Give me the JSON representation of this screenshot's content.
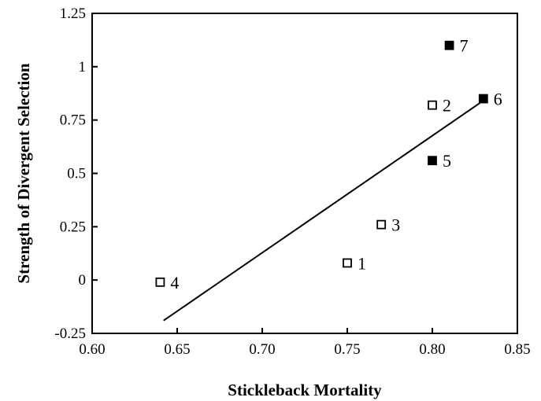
{
  "chart_data": {
    "type": "scatter",
    "title": "",
    "xlabel": "Stickleback Mortality",
    "ylabel": "Strength of Divergent Selection",
    "xlim": [
      0.6,
      0.85
    ],
    "ylim": [
      -0.25,
      1.25
    ],
    "x_ticks": [
      "0.60",
      "0.65",
      "0.70",
      "0.75",
      "0.80",
      "0.85"
    ],
    "y_ticks": [
      "-0.25",
      "0",
      "0.25",
      "0.5",
      "0.75",
      "1",
      "1.25"
    ],
    "grid": false,
    "legend": "none",
    "points": [
      {
        "label": "1",
        "x": 0.75,
        "y": 0.08,
        "marker": "open-square"
      },
      {
        "label": "2",
        "x": 0.8,
        "y": 0.82,
        "marker": "open-square"
      },
      {
        "label": "3",
        "x": 0.77,
        "y": 0.26,
        "marker": "open-square"
      },
      {
        "label": "4",
        "x": 0.64,
        "y": -0.01,
        "marker": "open-square"
      },
      {
        "label": "5",
        "x": 0.8,
        "y": 0.56,
        "marker": "filled-square"
      },
      {
        "label": "6",
        "x": 0.83,
        "y": 0.85,
        "marker": "filled-square"
      },
      {
        "label": "7",
        "x": 0.81,
        "y": 1.1,
        "marker": "filled-square"
      }
    ],
    "trendline": {
      "x": [
        0.642,
        0.828
      ],
      "y": [
        -0.19,
        0.83
      ]
    }
  }
}
